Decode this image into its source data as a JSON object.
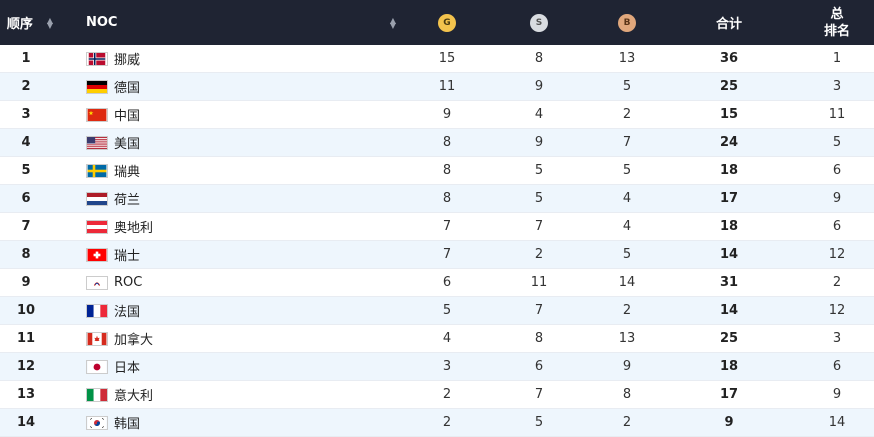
{
  "header": {
    "rank": "顺序",
    "noc": "NOC",
    "gold": "G",
    "silver": "S",
    "bronze": "B",
    "total": "合计",
    "total_rank_line1": "总",
    "total_rank_line2": "排名"
  },
  "rows": [
    {
      "rank": "1",
      "noc": "挪威",
      "flag": "norway-flag",
      "gold": "15",
      "silver": "8",
      "bronze": "13",
      "total": "36",
      "total_rank": "1"
    },
    {
      "rank": "2",
      "noc": "德国",
      "flag": "germany-flag",
      "gold": "11",
      "silver": "9",
      "bronze": "5",
      "total": "25",
      "total_rank": "3"
    },
    {
      "rank": "3",
      "noc": "中国",
      "flag": "china-flag",
      "gold": "9",
      "silver": "4",
      "bronze": "2",
      "total": "15",
      "total_rank": "11"
    },
    {
      "rank": "4",
      "noc": "美国",
      "flag": "usa-flag",
      "gold": "8",
      "silver": "9",
      "bronze": "7",
      "total": "24",
      "total_rank": "5"
    },
    {
      "rank": "5",
      "noc": "瑞典",
      "flag": "sweden-flag",
      "gold": "8",
      "silver": "5",
      "bronze": "5",
      "total": "18",
      "total_rank": "6"
    },
    {
      "rank": "6",
      "noc": "荷兰",
      "flag": "netherlands-flag",
      "gold": "8",
      "silver": "5",
      "bronze": "4",
      "total": "17",
      "total_rank": "9"
    },
    {
      "rank": "7",
      "noc": "奥地利",
      "flag": "austria-flag",
      "gold": "7",
      "silver": "7",
      "bronze": "4",
      "total": "18",
      "total_rank": "6"
    },
    {
      "rank": "8",
      "noc": "瑞士",
      "flag": "switzerland-flag",
      "gold": "7",
      "silver": "2",
      "bronze": "5",
      "total": "14",
      "total_rank": "12"
    },
    {
      "rank": "9",
      "noc": "ROC",
      "flag": "roc-flag",
      "gold": "6",
      "silver": "11",
      "bronze": "14",
      "total": "31",
      "total_rank": "2"
    },
    {
      "rank": "10",
      "noc": "法国",
      "flag": "france-flag",
      "gold": "5",
      "silver": "7",
      "bronze": "2",
      "total": "14",
      "total_rank": "12"
    },
    {
      "rank": "11",
      "noc": "加拿大",
      "flag": "canada-flag",
      "gold": "4",
      "silver": "8",
      "bronze": "13",
      "total": "25",
      "total_rank": "3"
    },
    {
      "rank": "12",
      "noc": "日本",
      "flag": "japan-flag",
      "gold": "3",
      "silver": "6",
      "bronze": "9",
      "total": "18",
      "total_rank": "6"
    },
    {
      "rank": "13",
      "noc": "意大利",
      "flag": "italy-flag",
      "gold": "2",
      "silver": "7",
      "bronze": "8",
      "total": "17",
      "total_rank": "9"
    },
    {
      "rank": "14",
      "noc": "韩国",
      "flag": "korea-flag",
      "gold": "2",
      "silver": "5",
      "bronze": "2",
      "total": "9",
      "total_rank": "14"
    }
  ]
}
